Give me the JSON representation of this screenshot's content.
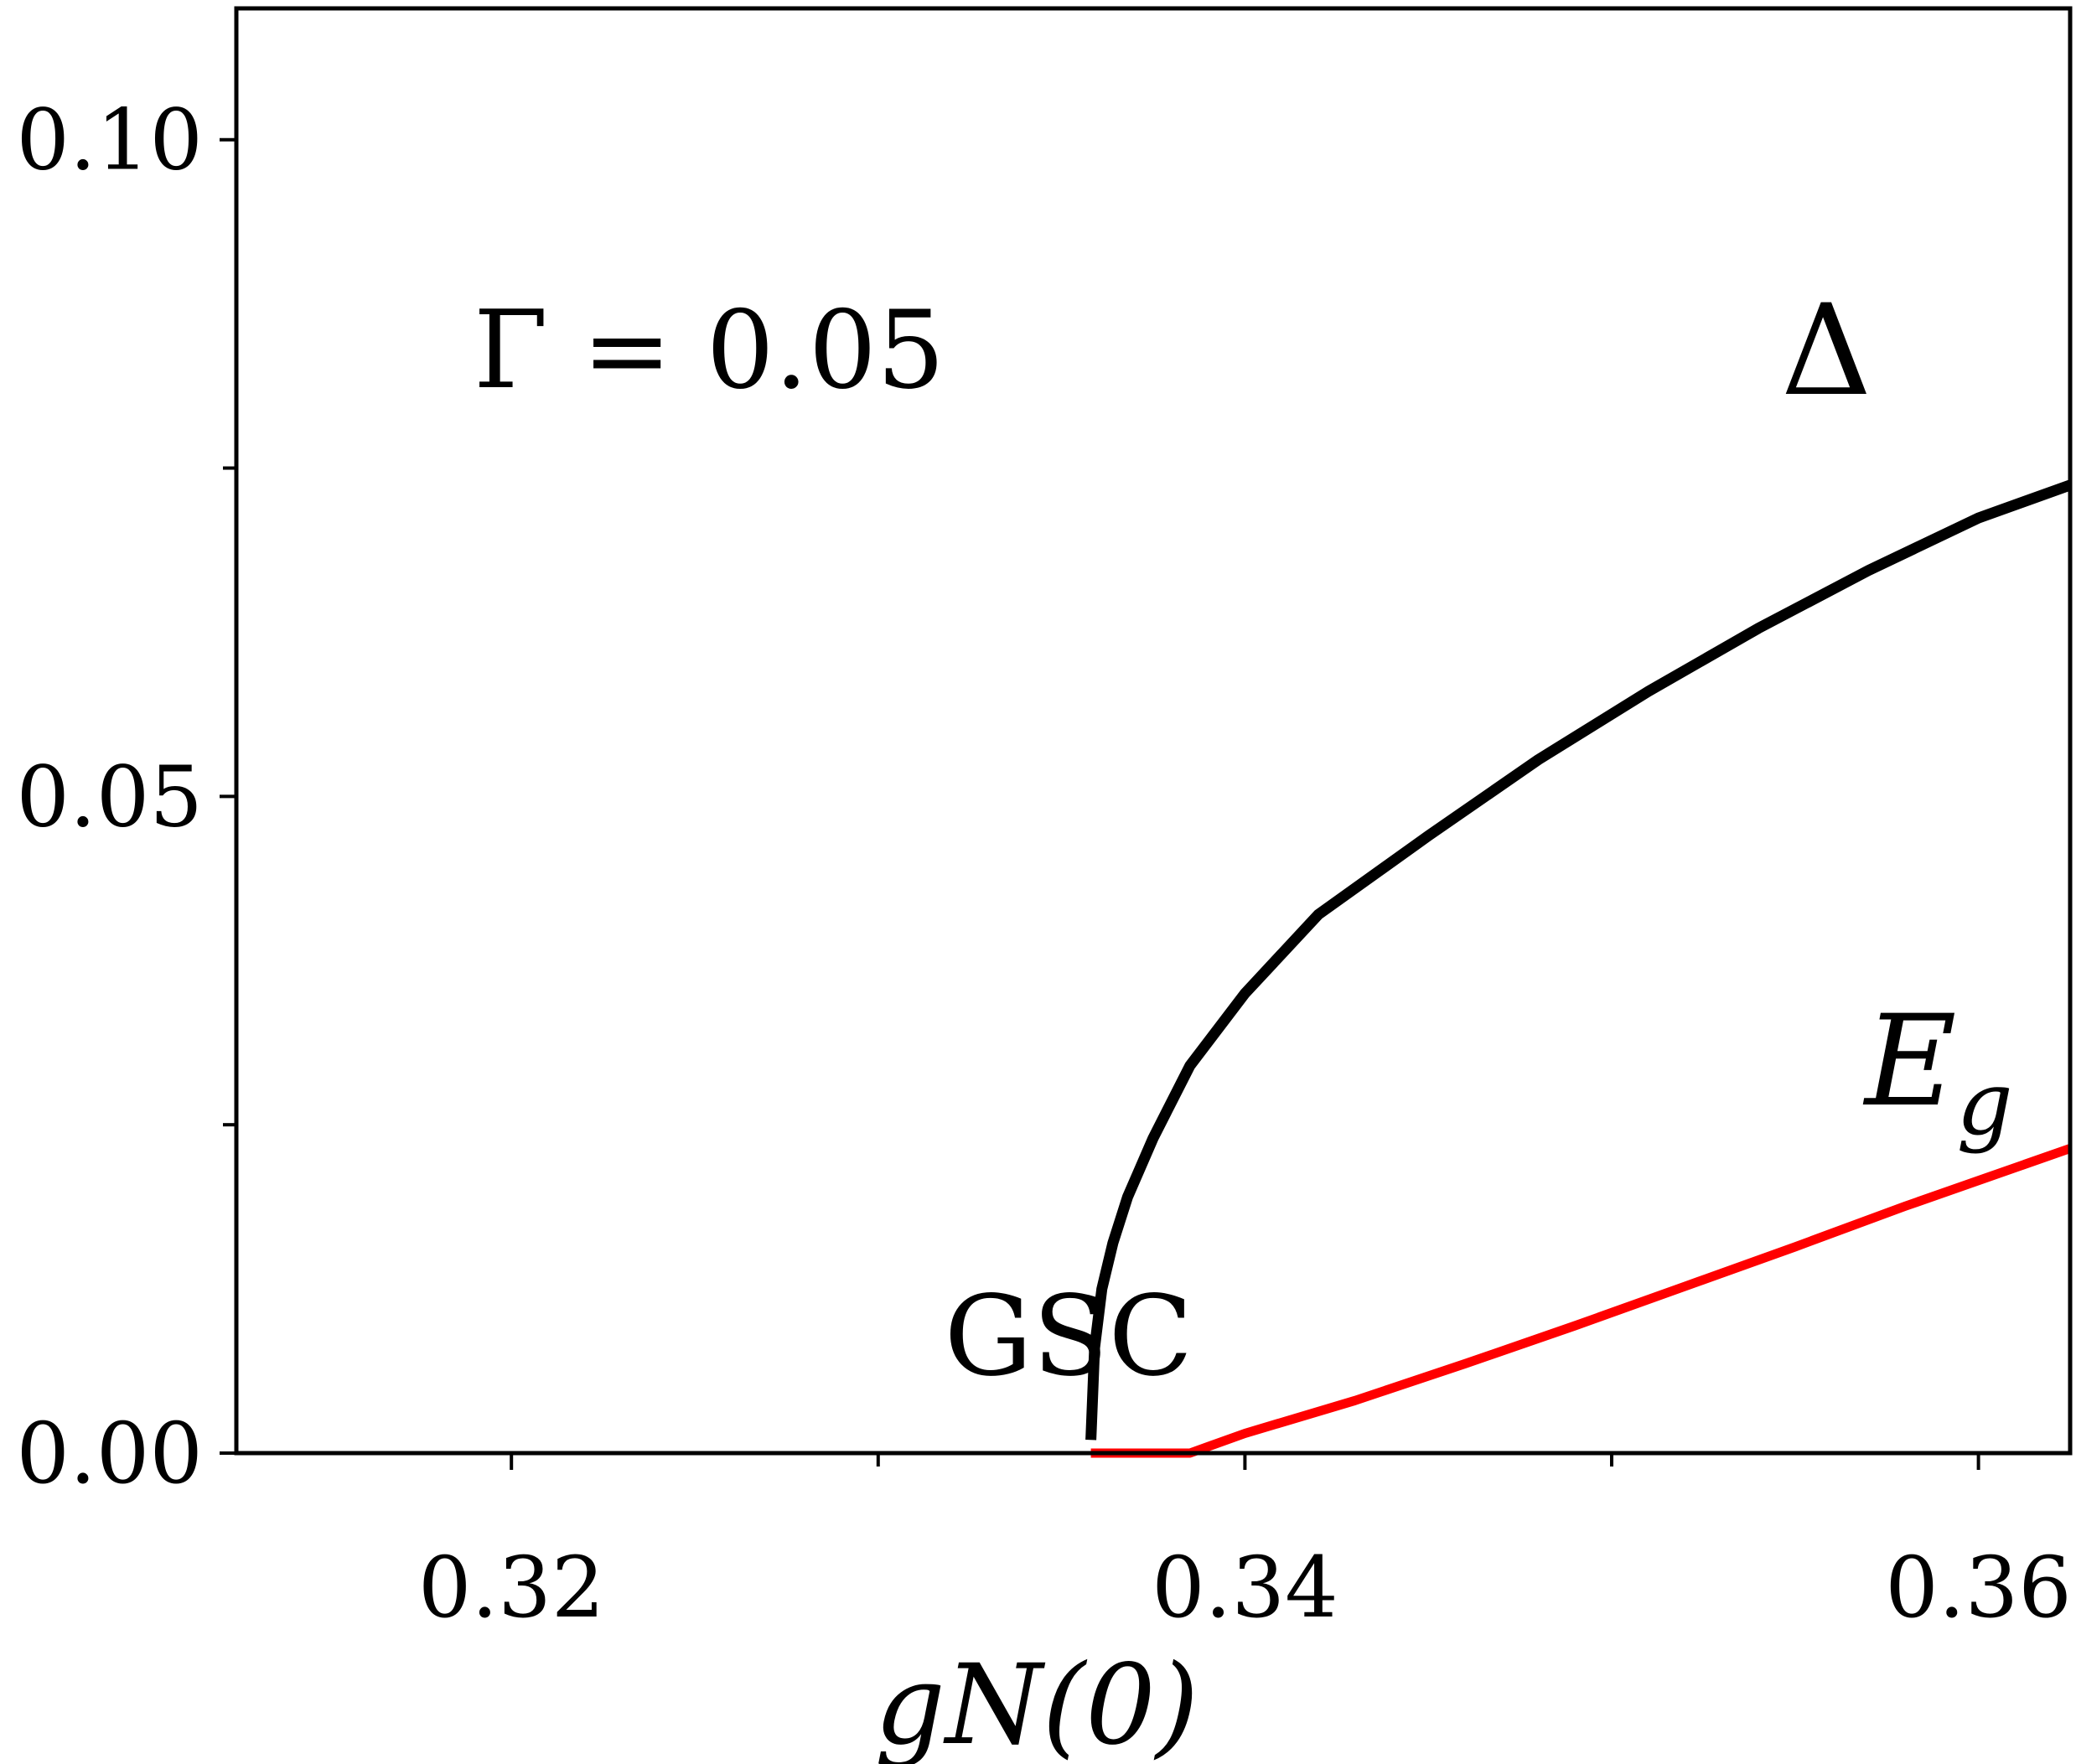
{
  "chart_data": {
    "type": "line",
    "xlabel": "gN(0)",
    "ylabel": "",
    "xlim": [
      0.3125,
      0.3625
    ],
    "ylim": [
      0.0,
      0.11
    ],
    "x_ticks": [
      0.32,
      0.34,
      0.36
    ],
    "x_tick_labels": [
      "0.32",
      "0.34",
      "0.36"
    ],
    "x_minor_ticks": [
      0.33,
      0.35
    ],
    "y_ticks": [
      0.0,
      0.05,
      0.1
    ],
    "y_tick_labels": [
      "0.00",
      "0.05",
      "0.10"
    ],
    "y_minor_ticks": [
      0.025,
      0.075
    ],
    "grid": false,
    "series": [
      {
        "name": "Δ",
        "color": "#000000",
        "x": [
          0.3358,
          0.3359,
          0.3361,
          0.3364,
          0.3368,
          0.3375,
          0.3385,
          0.34,
          0.342,
          0.345,
          0.348,
          0.351,
          0.354,
          0.357,
          0.36,
          0.3625
        ],
        "y": [
          0.001,
          0.008,
          0.0125,
          0.016,
          0.0195,
          0.024,
          0.0295,
          0.035,
          0.041,
          0.047,
          0.0528,
          0.058,
          0.0628,
          0.0672,
          0.0712,
          0.0737
        ]
      },
      {
        "name": "E_g",
        "color": "#ff0000",
        "x": [
          0.3358,
          0.337,
          0.3385,
          0.339,
          0.34,
          0.343,
          0.346,
          0.349,
          0.352,
          0.355,
          0.358,
          0.3625
        ],
        "y": [
          0.0,
          0.0,
          0.0,
          0.0005,
          0.0015,
          0.004,
          0.0068,
          0.0097,
          0.0127,
          0.0157,
          0.0188,
          0.0232
        ]
      }
    ],
    "annotations": {
      "gamma": "Γ = 0.05",
      "delta_label": "Δ",
      "eg_label_main": "E",
      "eg_label_sub": "g",
      "region": "GSC",
      "region_color": "#0000ff"
    }
  }
}
